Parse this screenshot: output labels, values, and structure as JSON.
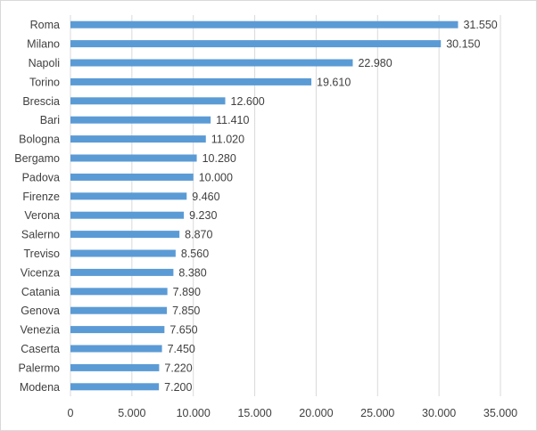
{
  "chart_data": {
    "type": "bar",
    "orientation": "horizontal",
    "title": "",
    "xlabel": "",
    "ylabel": "",
    "categories": [
      "Roma",
      "Milano",
      "Napoli",
      "Torino",
      "Brescia",
      "Bari",
      "Bologna",
      "Bergamo",
      "Padova",
      "Firenze",
      "Verona",
      "Salerno",
      "Treviso",
      "Vicenza",
      "Catania",
      "Genova",
      "Venezia",
      "Caserta",
      "Palermo",
      "Modena"
    ],
    "values": [
      31550,
      30150,
      22980,
      19610,
      12600,
      11410,
      11020,
      10280,
      10000,
      9460,
      9230,
      8870,
      8560,
      8380,
      7890,
      7850,
      7650,
      7450,
      7220,
      7200
    ],
    "value_labels": [
      "31.550",
      "30.150",
      "22.980",
      "19.610",
      "12.600",
      "11.410",
      "11.020",
      "10.280",
      "10.000",
      "9.460",
      "9.230",
      "8.870",
      "8.560",
      "8.380",
      "7.890",
      "7.850",
      "7.650",
      "7.450",
      "7.220",
      "7.200"
    ],
    "xlim": [
      0,
      35000
    ],
    "xticks": [
      0,
      5000,
      10000,
      15000,
      20000,
      25000,
      30000,
      35000
    ],
    "xtick_labels": [
      "0",
      "5.000",
      "10.000",
      "15.000",
      "20.000",
      "25.000",
      "30.000",
      "35.000"
    ],
    "grid": true,
    "legend": false,
    "bar_color": "#5b9bd5",
    "grid_color": "#d9d9d9"
  }
}
